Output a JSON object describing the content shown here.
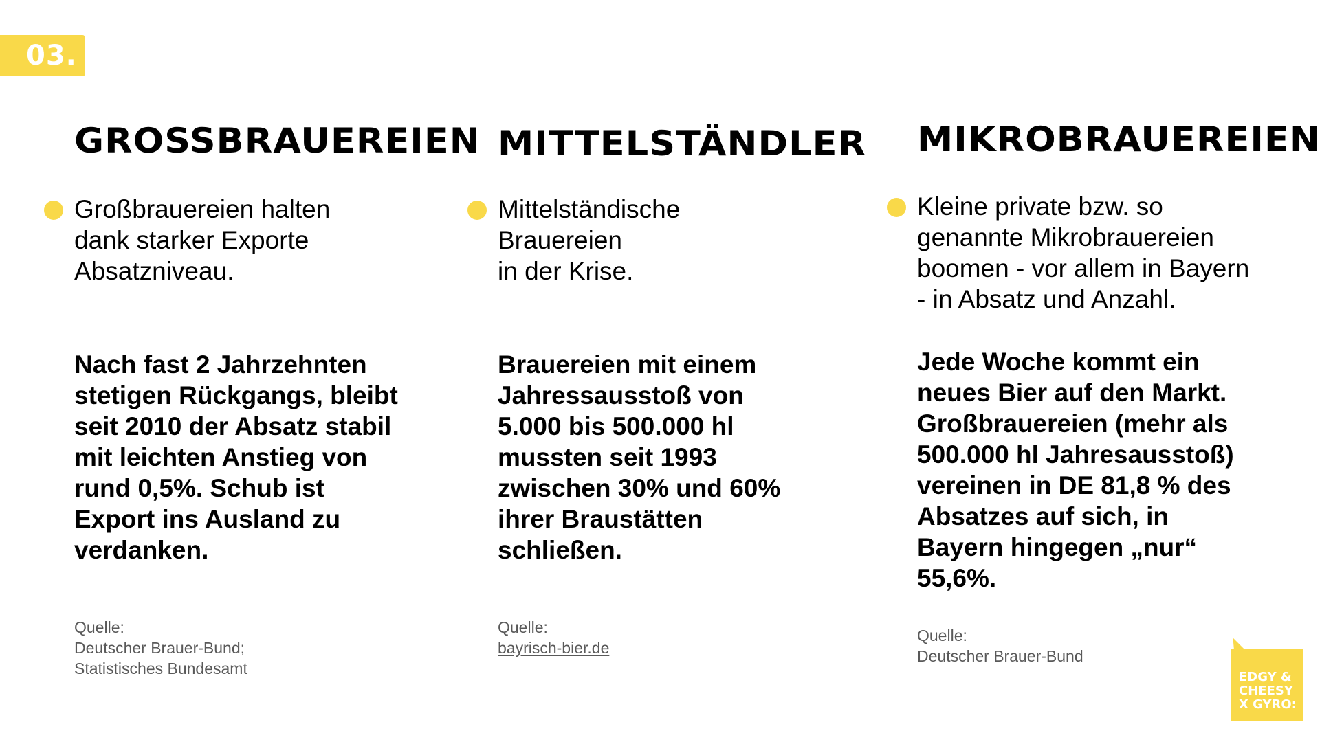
{
  "slide_number": "03.",
  "columns": [
    {
      "title": "Großbrauereien",
      "bullet": "Großbrauereien halten\ndank starker Exporte\nAbsatzniveau.",
      "highlight": "Nach fast 2 Jahrzehnten\nstetigen Rückgangs, bleibt\nseit 2010 der Absatz stabil\nmit leichten Anstieg von\nrund 0,5%. Schub ist\nExport ins Ausland zu\nverdanken.",
      "source_label": "Quelle:",
      "source_lines": [
        "Deutscher Brauer-Bund;",
        "Statistisches Bundesamt"
      ]
    },
    {
      "title": "Mittelständler",
      "bullet": "Mittelständische\nBrauereien\nin der Krise.",
      "highlight": "Brauereien mit einem\nJahressausstoß von\n5.000 bis 500.000 hl\nmussten seit 1993\nzwischen 30% und 60%\nihrer Braustätten\nschließen.",
      "source_label": "Quelle:",
      "source_link": "bayrisch-bier.de"
    },
    {
      "title": "Mikrobrauereien",
      "bullet": "Kleine private bzw. so\ngenannte Mikrobrauereien\nboomen - vor allem in Bayern\n- in Absatz und Anzahl.",
      "highlight": "Jede Woche kommt ein\nneues Bier auf den Markt.\nGroßbrauereien (mehr als\n500.000 hl Jahresausstoß)\nvereinen in DE 81,8 % des\nAbsatzes auf sich, in\nBayern hingegen „nur“\n55,6%.",
      "source_label": "Quelle:",
      "source_lines": [
        "Deutscher Brauer-Bund"
      ]
    }
  ],
  "brand": {
    "logo_text": "EDGY &\nCHEESY\nX GYRO:",
    "icon": "lightning-bolt-icon"
  },
  "colors": {
    "accent": "#f9d949",
    "text": "#000000",
    "source": "#595959"
  }
}
